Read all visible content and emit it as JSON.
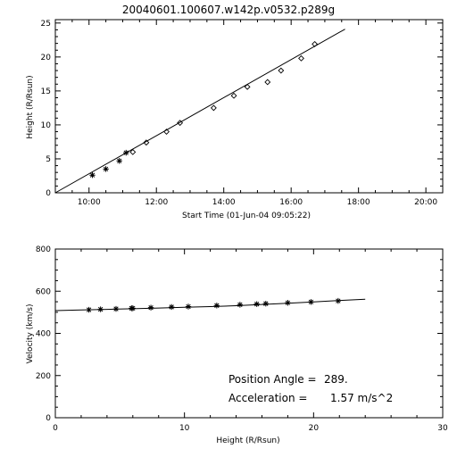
{
  "chart_data": [
    {
      "type": "scatter",
      "title": "20040601.100607.w142p.v0532.p289g",
      "xlabel": "Start Time (01-Jun-04 09:05:22)",
      "ylabel": "Height (R/Rsun)",
      "x_tick_labels": [
        "10:00",
        "12:00",
        "14:00",
        "16:00",
        "18:00",
        "20:00"
      ],
      "y_tick_labels": [
        "0",
        "5",
        "10",
        "15",
        "20",
        "25"
      ],
      "xlim": [
        "09:00",
        "20:30"
      ],
      "ylim": [
        0,
        25.5
      ],
      "series": [
        {
          "marker": "star",
          "x": [
            "10:06",
            "10:30",
            "10:54",
            "11:06"
          ],
          "y": [
            2.6,
            3.5,
            4.7,
            5.9
          ]
        },
        {
          "marker": "diamond",
          "x": [
            "11:18",
            "11:42",
            "12:18",
            "12:42",
            "13:42",
            "14:18",
            "14:42",
            "15:18",
            "15:42",
            "16:18",
            "16:42"
          ],
          "y": [
            6.0,
            7.4,
            9.0,
            10.3,
            12.5,
            14.3,
            15.6,
            16.3,
            18.0,
            19.8,
            21.9
          ]
        },
        {
          "marker": "line",
          "x": [
            "09:00",
            "17:36"
          ],
          "y": [
            0.0,
            24.1
          ]
        }
      ]
    },
    {
      "type": "scatter",
      "xlabel": "Height (R/Rsun)",
      "ylabel": "Velocity (km/s)",
      "x_tick_labels": [
        "0",
        "10",
        "20",
        "30"
      ],
      "y_tick_labels": [
        "0",
        "200",
        "400",
        "600",
        "800"
      ],
      "xlim": [
        0,
        30
      ],
      "ylim": [
        0,
        800
      ],
      "series": [
        {
          "marker": "star",
          "x": [
            2.6,
            3.5,
            4.7,
            5.9,
            6.0,
            7.4,
            9.0,
            10.3,
            12.5,
            14.3,
            15.6,
            16.3,
            18.0,
            19.8,
            21.9
          ],
          "y": [
            512,
            514,
            516,
            519,
            519,
            522,
            525,
            527,
            532,
            536,
            539,
            541,
            545,
            549,
            554
          ]
        },
        {
          "marker": "line",
          "x": [
            0,
            2,
            4,
            6,
            8,
            10,
            12,
            14,
            16,
            18,
            20,
            22,
            24
          ],
          "y": [
            508,
            511,
            514,
            517,
            520,
            524,
            527,
            531,
            537,
            543,
            549,
            556,
            562
          ]
        }
      ],
      "annotations": [
        {
          "label": "Position Angle =",
          "value": "289."
        },
        {
          "label": "Acceleration =",
          "value": "1.57 m/s^2"
        }
      ]
    }
  ]
}
